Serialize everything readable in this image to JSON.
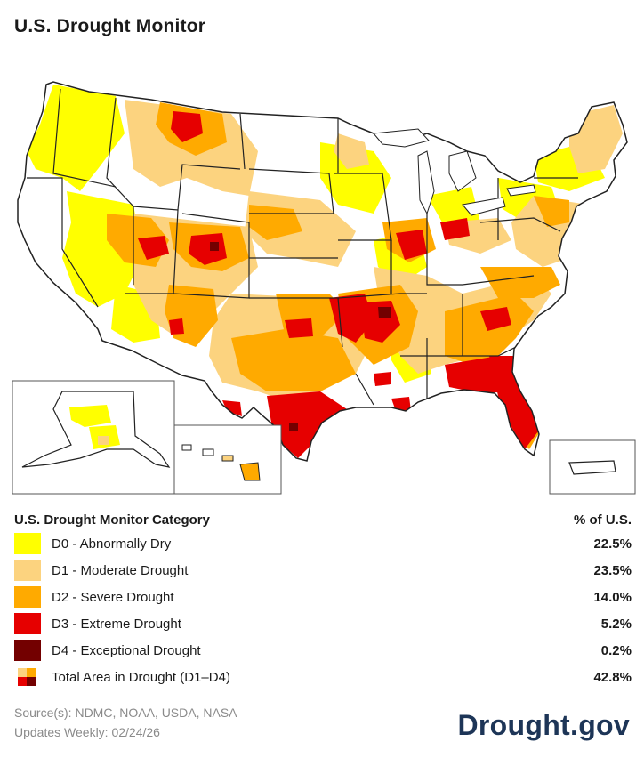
{
  "header": {
    "title": "U.S. Drought Monitor"
  },
  "colors": {
    "D0": "#ffff00",
    "D1": "#fcd37f",
    "D2": "#ffaa00",
    "D3": "#e60000",
    "D4": "#730000",
    "none": "#ffffff",
    "border": "#222222"
  },
  "legend": {
    "heading": "U.S. Drought Monitor Category",
    "pct_heading": "% of U.S.",
    "categories": [
      {
        "code": "D0",
        "label": "D0 - Abnormally Dry",
        "pct": "22.5%"
      },
      {
        "code": "D1",
        "label": "D1 - Moderate Drought",
        "pct": "23.5%"
      },
      {
        "code": "D2",
        "label": "D2 - Severe Drought",
        "pct": "14.0%"
      },
      {
        "code": "D3",
        "label": "D3 - Extreme Drought",
        "pct": "5.2%"
      },
      {
        "code": "D4",
        "label": "D4 - Exceptional Drought",
        "pct": "0.2%"
      }
    ],
    "total": {
      "label": "Total Area in Drought (D1–D4)",
      "pct": "42.8%"
    }
  },
  "footer": {
    "source": "Source(s): NDMC, NOAA, USDA, NASA",
    "updated": "Updates Weekly: 02/24/26"
  },
  "brand": "Drought.gov"
}
